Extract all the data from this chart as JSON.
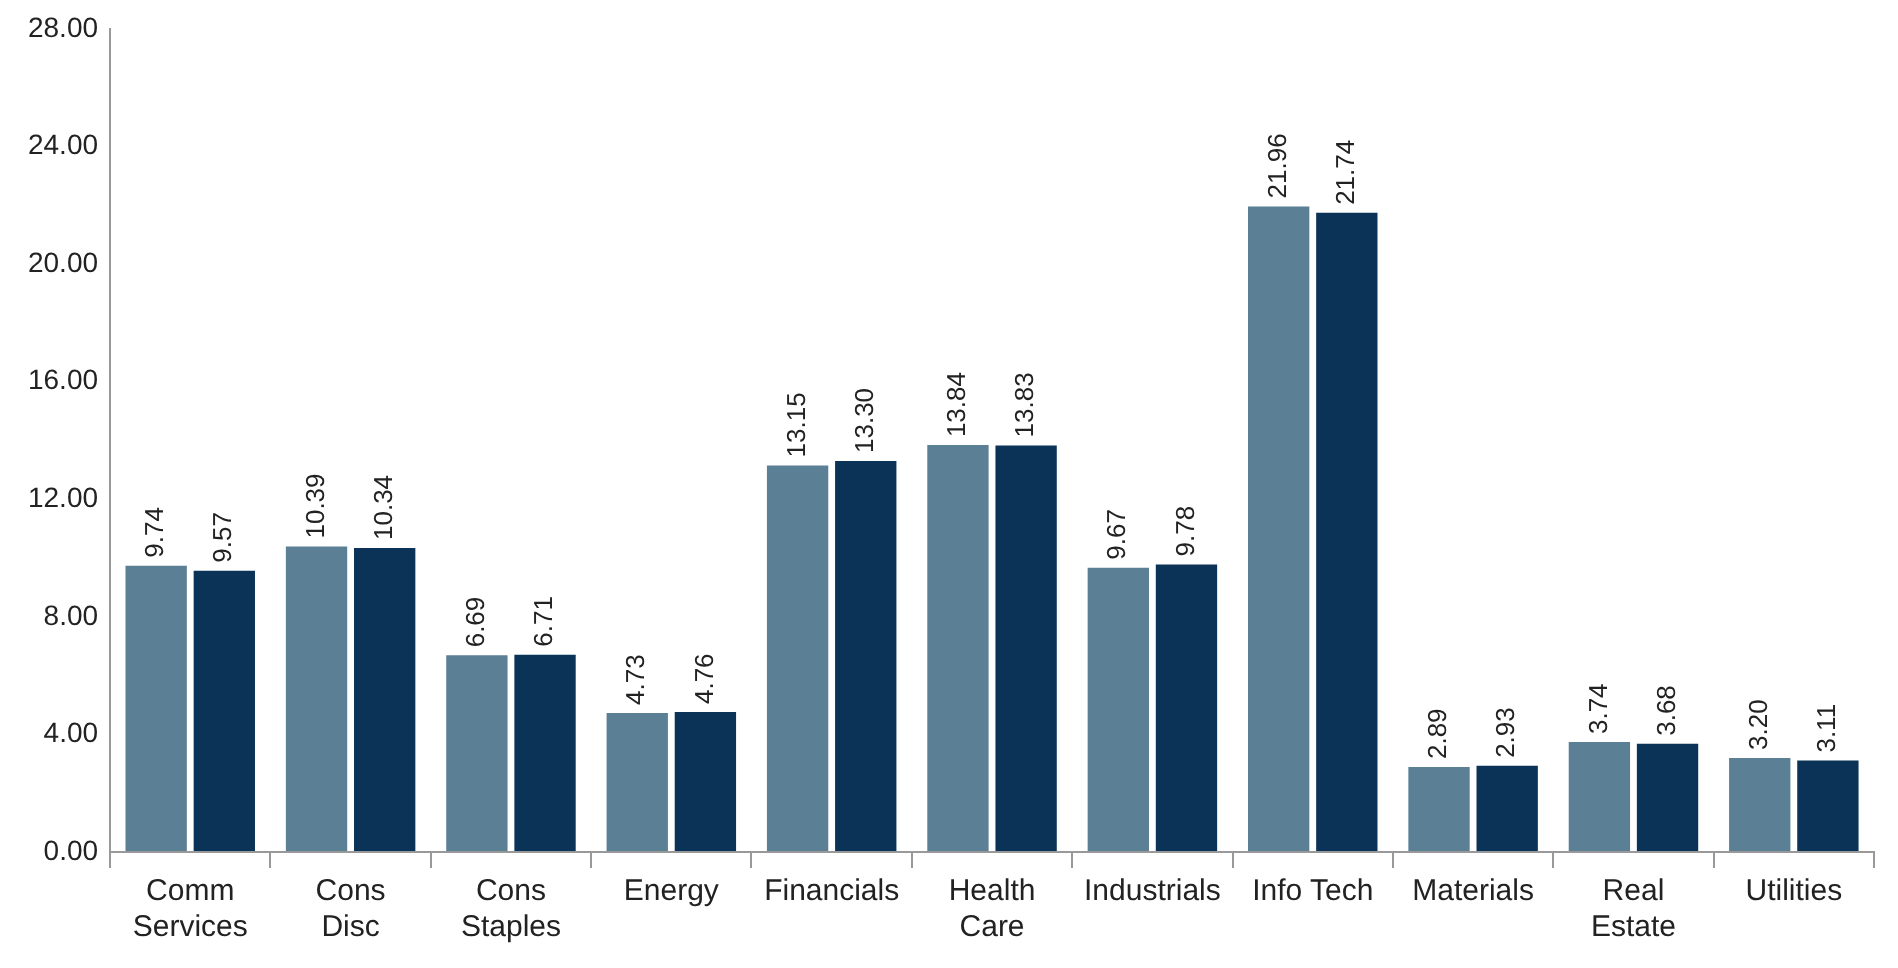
{
  "chart_data": {
    "type": "bar",
    "categories": [
      "Comm\nServices",
      "Cons\nDisc",
      "Cons\nStaples",
      "Energy",
      "Financials",
      "Health\nCare",
      "Industrials",
      "Info Tech",
      "Materials",
      "Real\nEstate",
      "Utilities"
    ],
    "series": [
      {
        "color": "#5b7f95",
        "values": [
          9.74,
          10.39,
          6.69,
          4.73,
          13.15,
          13.84,
          9.67,
          21.96,
          2.89,
          3.74,
          3.2
        ],
        "value_labels": [
          "9.74",
          "10.39",
          "6.69",
          "4.73",
          "13.15",
          "13.84",
          "9.67",
          "21.96",
          "2.89",
          "3.74",
          "3.20"
        ]
      },
      {
        "color": "#0b3357",
        "values": [
          9.57,
          10.34,
          6.71,
          4.76,
          13.3,
          13.83,
          9.78,
          21.74,
          2.93,
          3.68,
          3.11
        ],
        "value_labels": [
          "9.57",
          "10.34",
          "6.71",
          "4.76",
          "13.30",
          "13.83",
          "9.78",
          "21.74",
          "2.93",
          "3.68",
          "3.11"
        ]
      }
    ],
    "ylim": [
      0,
      28
    ],
    "yticks": [
      {
        "value": 0,
        "label": "0.00"
      },
      {
        "value": 4,
        "label": "4.00"
      },
      {
        "value": 8,
        "label": "8.00"
      },
      {
        "value": 12,
        "label": "12.00"
      },
      {
        "value": 16,
        "label": "16.00"
      },
      {
        "value": 20,
        "label": "20.00"
      },
      {
        "value": 24,
        "label": "24.00"
      },
      {
        "value": 28,
        "label": "28.00"
      }
    ],
    "grid": false,
    "legend": false
  }
}
